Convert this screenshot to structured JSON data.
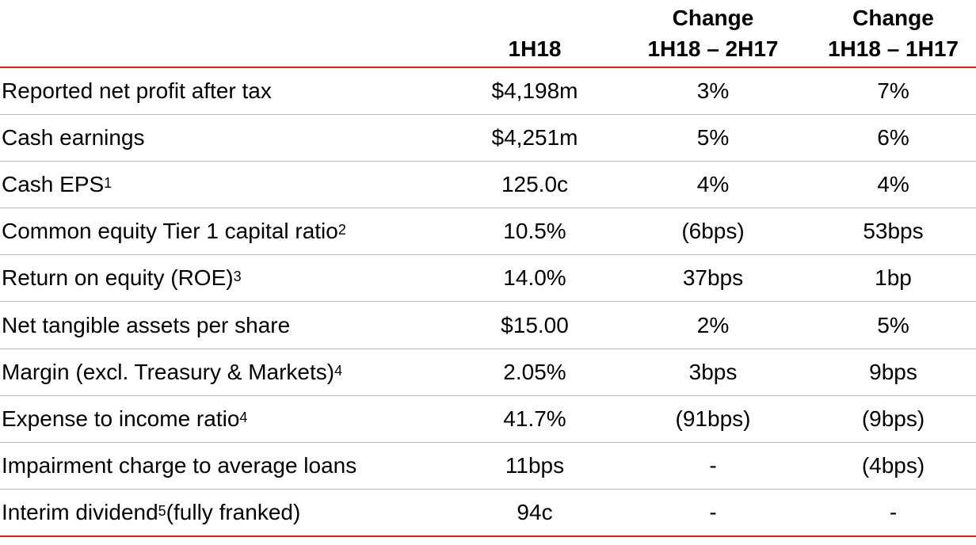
{
  "header": {
    "col1": [
      "1H18"
    ],
    "col2": [
      "Change",
      "1H18 – 2H17"
    ],
    "col3": [
      "Change",
      "1H18 – 1H17"
    ]
  },
  "rows": [
    {
      "label": "Reported net profit after tax",
      "sup": "",
      "label_suffix": "",
      "v1": "$4,198m",
      "v2": "3%",
      "v3": "7%"
    },
    {
      "label": "Cash earnings",
      "sup": "",
      "label_suffix": "",
      "v1": "$4,251m",
      "v2": "5%",
      "v3": "6%"
    },
    {
      "label": "Cash EPS",
      "sup": "1",
      "label_suffix": "",
      "v1": "125.0c",
      "v2": "4%",
      "v3": "4%"
    },
    {
      "label": "Common equity Tier 1 capital ratio",
      "sup": "2",
      "label_suffix": "",
      "v1": "10.5%",
      "v2": "(6bps)",
      "v3": "53bps"
    },
    {
      "label": "Return on equity (ROE)",
      "sup": "3",
      "label_suffix": "",
      "v1": "14.0%",
      "v2": "37bps",
      "v3": "1bp"
    },
    {
      "label": "Net tangible assets per share",
      "sup": "",
      "label_suffix": "",
      "v1": "$15.00",
      "v2": "2%",
      "v3": "5%"
    },
    {
      "label": "Margin (excl. Treasury & Markets)",
      "sup": "4",
      "label_suffix": "",
      "v1": "2.05%",
      "v2": "3bps",
      "v3": "9bps"
    },
    {
      "label": "Expense to income ratio",
      "sup": "4",
      "label_suffix": "",
      "v1": "41.7%",
      "v2": "(91bps)",
      "v3": "(9bps)"
    },
    {
      "label": "Impairment charge to average loans",
      "sup": "",
      "label_suffix": "",
      "v1": "11bps",
      "v2": "-",
      "v3": "(4bps)"
    },
    {
      "label": "Interim dividend",
      "sup": "5",
      "label_suffix": " (fully franked)",
      "v1": "94c",
      "v2": "-",
      "v3": "-"
    }
  ],
  "colors": {
    "rule": "#d9261c",
    "row_divider": "#bdbdbd",
    "text": "#000000"
  }
}
